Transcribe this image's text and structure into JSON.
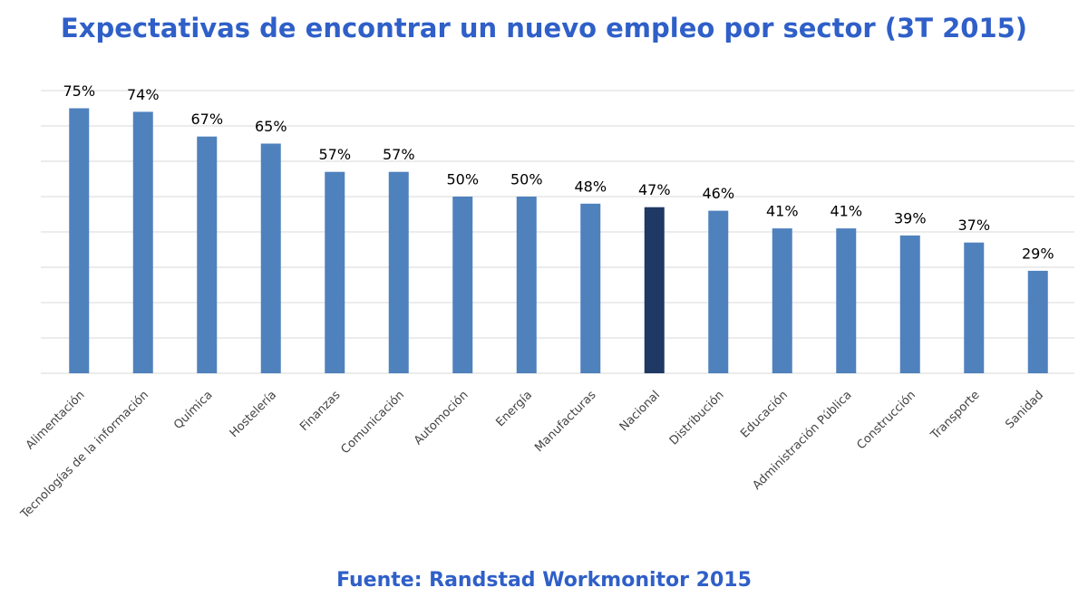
{
  "chart_data": {
    "type": "bar",
    "title": "Expectativas de encontrar un nuevo empleo por sector (3T 2015)",
    "source": "Fuente: Randstad Workmonitor 2015",
    "categories": [
      "Alimentación",
      "Tecnologías de la información",
      "Química",
      "Hostelería",
      "Finanzas",
      "Comunicación",
      "Automoción",
      "Energía",
      "Manufacturas",
      "Nacional",
      "Distribución",
      "Educación",
      "Administración Pública",
      "Construcción",
      "Transporte",
      "Sanidad"
    ],
    "values": [
      75,
      74,
      67,
      65,
      57,
      57,
      50,
      50,
      48,
      47,
      46,
      41,
      41,
      39,
      37,
      29
    ],
    "value_labels": [
      "75%",
      "74%",
      "67%",
      "65%",
      "57%",
      "57%",
      "50%",
      "50%",
      "48%",
      "47%",
      "46%",
      "41%",
      "41%",
      "39%",
      "37%",
      "29%"
    ],
    "colors": [
      "#4f81bd",
      "#4f81bd",
      "#4f81bd",
      "#4f81bd",
      "#4f81bd",
      "#4f81bd",
      "#4f81bd",
      "#4f81bd",
      "#4f81bd",
      "#1f3864",
      "#4f81bd",
      "#4f81bd",
      "#4f81bd",
      "#4f81bd",
      "#4f81bd",
      "#4f81bd"
    ],
    "ylim": [
      0,
      80
    ],
    "yticks": [
      0,
      10,
      20,
      30,
      40,
      50,
      60,
      70,
      80
    ],
    "grid": true
  }
}
